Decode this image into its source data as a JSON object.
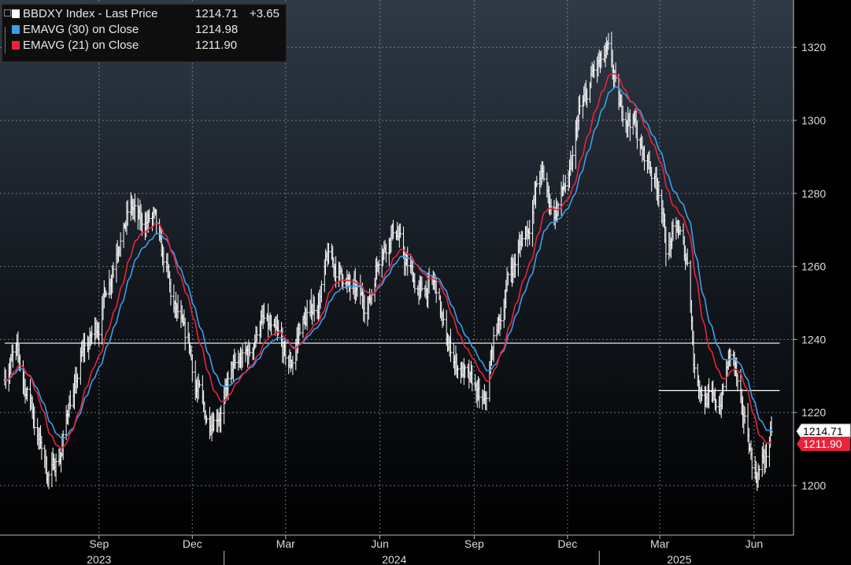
{
  "chart_data": {
    "type": "candlestick",
    "ylim": [
      1188,
      1330
    ],
    "y_ticks": [
      1200,
      1220,
      1240,
      1260,
      1280,
      1300,
      1320
    ],
    "x_tick_labels": [
      "Sep",
      "Dec",
      "Mar",
      "Jun",
      "Sep",
      "Dec",
      "Mar",
      "Jun"
    ],
    "x_tick_dates": [
      "2023-09-01",
      "2023-12-01",
      "2024-03-01",
      "2024-06-01",
      "2024-09-01",
      "2024-12-01",
      "2025-03-01",
      "2025-06-01"
    ],
    "year_labels": [
      "2023",
      "2024",
      "2025"
    ],
    "year_label_dates": [
      "2023-09-01",
      "2024-06-15",
      "2025-03-20"
    ],
    "year_boundary_dates": [
      "2024-01-01",
      "2025-01-01"
    ],
    "x_range": [
      "2023-06-01",
      "2025-06-18"
    ],
    "grid": true,
    "legend_position": "top-left",
    "series": [
      {
        "name": "BBDXY Index - Last Price",
        "value": "1214.71",
        "change": "+3.65",
        "color": "#ffffff",
        "anchors": [
          [
            "2023-06-01",
            1231
          ],
          [
            "2023-06-12",
            1236
          ],
          [
            "2023-06-24",
            1225
          ],
          [
            "2023-07-05",
            1212
          ],
          [
            "2023-07-14",
            1203
          ],
          [
            "2023-07-24",
            1208
          ],
          [
            "2023-08-05",
            1224
          ],
          [
            "2023-08-19",
            1238
          ],
          [
            "2023-08-31",
            1244
          ],
          [
            "2023-09-10",
            1256
          ],
          [
            "2023-09-22",
            1268
          ],
          [
            "2023-10-02",
            1276
          ],
          [
            "2023-10-12",
            1272
          ],
          [
            "2023-10-24",
            1273
          ],
          [
            "2023-11-03",
            1262
          ],
          [
            "2023-11-14",
            1248
          ],
          [
            "2023-11-26",
            1240
          ],
          [
            "2023-12-06",
            1226
          ],
          [
            "2023-12-16",
            1218
          ],
          [
            "2023-12-28",
            1220
          ],
          [
            "2024-01-10",
            1232
          ],
          [
            "2024-01-24",
            1236
          ],
          [
            "2024-02-07",
            1245
          ],
          [
            "2024-02-21",
            1241
          ],
          [
            "2024-03-05",
            1233
          ],
          [
            "2024-03-18",
            1245
          ],
          [
            "2024-04-01",
            1250
          ],
          [
            "2024-04-12",
            1262
          ],
          [
            "2024-04-24",
            1258
          ],
          [
            "2024-05-06",
            1253
          ],
          [
            "2024-05-20",
            1250
          ],
          [
            "2024-06-03",
            1265
          ],
          [
            "2024-06-16",
            1270
          ],
          [
            "2024-06-28",
            1260
          ],
          [
            "2024-07-10",
            1253
          ],
          [
            "2024-07-24",
            1255
          ],
          [
            "2024-08-07",
            1238
          ],
          [
            "2024-08-18",
            1232
          ],
          [
            "2024-08-29",
            1228
          ],
          [
            "2024-09-10",
            1222
          ],
          [
            "2024-09-24",
            1244
          ],
          [
            "2024-10-08",
            1260
          ],
          [
            "2024-10-22",
            1270
          ],
          [
            "2024-11-05",
            1285
          ],
          [
            "2024-11-18",
            1275
          ],
          [
            "2024-12-01",
            1283
          ],
          [
            "2024-12-15",
            1304
          ],
          [
            "2024-12-30",
            1315
          ],
          [
            "2025-01-10",
            1318
          ],
          [
            "2025-01-22",
            1303
          ],
          [
            "2025-02-02",
            1300
          ],
          [
            "2025-02-14",
            1290
          ],
          [
            "2025-02-28",
            1282
          ],
          [
            "2025-03-08",
            1265
          ],
          [
            "2025-03-18",
            1270
          ],
          [
            "2025-03-28",
            1262
          ],
          [
            "2025-04-05",
            1230
          ],
          [
            "2025-04-15",
            1224
          ],
          [
            "2025-04-27",
            1222
          ],
          [
            "2025-05-10",
            1236
          ],
          [
            "2025-05-22",
            1218
          ],
          [
            "2025-06-03",
            1203
          ],
          [
            "2025-06-12",
            1208
          ],
          [
            "2025-06-18",
            1214.71
          ]
        ]
      },
      {
        "name": "EMAVG (30)  on Close",
        "value": "1214.98",
        "color": "#3d9ee8",
        "period": 30
      },
      {
        "name": "EMAVG (21)  on Close",
        "value": "1211.90",
        "color": "#e8233a",
        "period": 21
      }
    ],
    "reference_lines": [
      {
        "value": 1239,
        "from": "2023-06-01",
        "to": "2025-06-26"
      },
      {
        "value": 1226,
        "from": "2025-02-28",
        "to": "2025-06-26"
      }
    ],
    "last_value_tags": [
      {
        "text": "1214.71",
        "value": 1214.71,
        "background": "#ffffff",
        "color": "#000000"
      },
      {
        "text": "1211.90",
        "value": 1211.9,
        "background": "#e8233a",
        "color": "#ffffff"
      }
    ]
  }
}
